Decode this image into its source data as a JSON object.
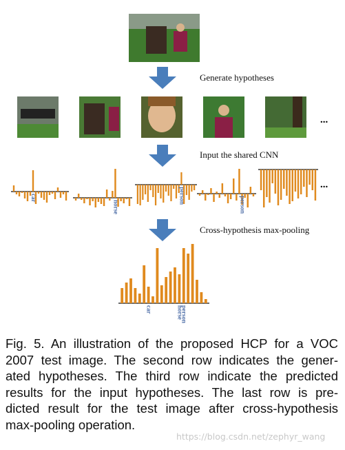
{
  "steps": [
    "Generate hypotheses",
    "Input the shared CNN",
    "Cross-hypothesis max-pooling"
  ],
  "images_more": "...",
  "charts_more": "...",
  "charts": [
    {
      "type": "bar",
      "color": "#e08a1e",
      "categories": [
        null,
        null,
        null,
        null,
        null,
        null,
        null,
        "car",
        null,
        null,
        null,
        null,
        null,
        null,
        null,
        null,
        null,
        null,
        null,
        null
      ],
      "values": [
        9,
        -4,
        -7,
        -2,
        -10,
        -14,
        -6,
        31,
        -18,
        -3,
        -9,
        -12,
        -16,
        -5,
        -3,
        -11,
        6,
        -9,
        -4,
        -13
      ]
    },
    {
      "type": "bar",
      "color": "#e08a1e",
      "categories": [
        null,
        null,
        null,
        null,
        null,
        null,
        null,
        null,
        null,
        null,
        null,
        null,
        null,
        null,
        "horse",
        null,
        null,
        null,
        null,
        null
      ],
      "values": [
        -4,
        6,
        -3,
        -8,
        -2,
        -11,
        -5,
        -14,
        -6,
        -9,
        -12,
        12,
        -4,
        10,
        42,
        -13,
        -5,
        -8,
        -2,
        -12
      ]
    },
    {
      "type": "bar",
      "color": "#e08a1e",
      "categories": [
        null,
        null,
        null,
        null,
        null,
        null,
        null,
        null,
        null,
        null,
        null,
        null,
        null,
        null,
        null,
        null,
        null,
        "person",
        null,
        null,
        null,
        null,
        null
      ],
      "values": [
        -28,
        -30,
        -22,
        -14,
        -25,
        -8,
        -18,
        -30,
        -12,
        -20,
        -26,
        -10,
        -16,
        -24,
        -6,
        -20,
        -12,
        18,
        -28,
        -15,
        -22,
        -10,
        -8
      ]
    },
    {
      "type": "bar",
      "color": "#e08a1e",
      "categories": [
        null,
        null,
        null,
        null,
        null,
        null,
        null,
        null,
        null,
        null,
        null,
        null,
        null,
        null,
        null,
        "person",
        null,
        null,
        null,
        null
      ],
      "values": [
        -3,
        5,
        -10,
        -2,
        8,
        -12,
        3,
        -6,
        15,
        -4,
        -14,
        -8,
        22,
        -10,
        36,
        -16,
        -6,
        -20,
        10,
        -4
      ]
    },
    {
      "type": "bar",
      "color": "#e08a1e",
      "categories": [
        null,
        null,
        null,
        null,
        null,
        null,
        null,
        null,
        null,
        null,
        null,
        null,
        null,
        null,
        null,
        null,
        null,
        null,
        null,
        null
      ],
      "values": [
        -30,
        -55,
        -40,
        -48,
        -20,
        -35,
        -52,
        -44,
        -28,
        -38,
        -50,
        -46,
        -32,
        -42,
        -36,
        -25,
        -40,
        -22,
        -30,
        -45
      ]
    }
  ],
  "final_chart": {
    "type": "bar",
    "color": "#e08a1e",
    "categories": [
      null,
      null,
      null,
      null,
      null,
      null,
      "car",
      null,
      null,
      null,
      null,
      null,
      null,
      "horse",
      "person",
      null,
      null,
      null,
      null,
      null
    ],
    "values": [
      22,
      30,
      36,
      22,
      14,
      55,
      24,
      10,
      80,
      26,
      38,
      46,
      52,
      42,
      80,
      72,
      86,
      34,
      16,
      6
    ]
  },
  "caption": {
    "lines": [
      "Fig. 5.  An illustration of the proposed HCP for a VOC",
      "2007 test image. The second row indicates the gener-",
      "ated hypotheses. The third row indicate the predicted",
      "results for the input hypotheses. The last row is pre-",
      "dicted result for the test image after cross-hypothesis",
      "max-pooling operation."
    ]
  },
  "watermark": "https://blog.csdn.net/zephyr_wang"
}
